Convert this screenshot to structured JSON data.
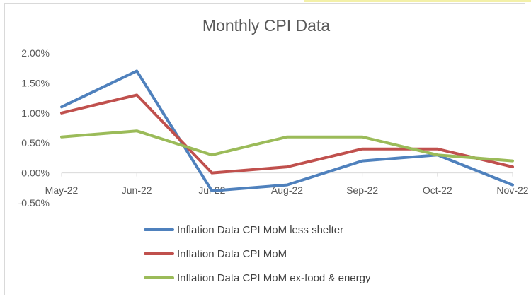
{
  "chart_data": {
    "type": "line",
    "title": "Monthly CPI Data",
    "categories": [
      "May-22",
      "Jun-22",
      "Jul-22",
      "Aug-22",
      "Sep-22",
      "Oct-22",
      "Nov-22"
    ],
    "y_ticks": [
      2.0,
      1.5,
      1.0,
      0.5,
      0.0,
      -0.5
    ],
    "y_tick_labels": [
      "2.00%",
      "1.50%",
      "1.00%",
      "0.50%",
      "0.00%",
      "-0.50%"
    ],
    "ylim": [
      -0.5,
      2.0
    ],
    "grid": false,
    "legend_position": "bottom",
    "series": [
      {
        "name": "Inflation Data CPI MoM less shelter",
        "color": "#4f81bd",
        "values": [
          1.1,
          1.7,
          -0.3,
          -0.2,
          0.2,
          0.3,
          -0.2
        ]
      },
      {
        "name": "Inflation Data CPI MoM",
        "color": "#c0504d",
        "values": [
          1.0,
          1.3,
          0.0,
          0.1,
          0.4,
          0.4,
          0.1
        ]
      },
      {
        "name": "Inflation Data CPI MoM ex-food & energy",
        "color": "#9bbb59",
        "values": [
          0.6,
          0.7,
          0.3,
          0.6,
          0.6,
          0.3,
          0.2
        ]
      }
    ]
  }
}
